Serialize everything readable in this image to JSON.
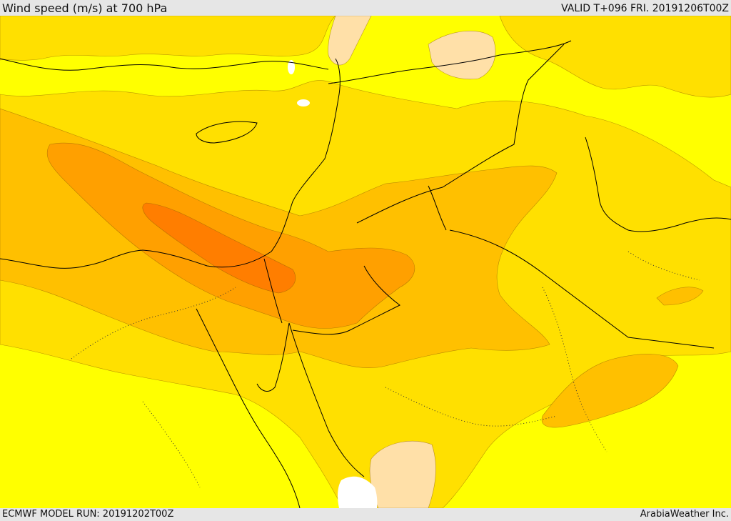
{
  "header": {
    "title": "Wind speed (m/s) at 700 hPa",
    "valid": "VALID T+096 FRI. 20191206T00Z"
  },
  "footer": {
    "model_run": "ECMWF MODEL RUN: 20191202T00Z",
    "credit": "ArabiaWeather Inc."
  },
  "colors": {
    "level_1": "#ffff00",
    "level_2": "#ffe000",
    "level_3": "#ffc000",
    "level_4": "#ffa000",
    "level_5": "#ff7e00",
    "calm": "#ffe0a8",
    "sea_gap": "#ffffff",
    "coast": "#000000",
    "border": "#000000"
  }
}
